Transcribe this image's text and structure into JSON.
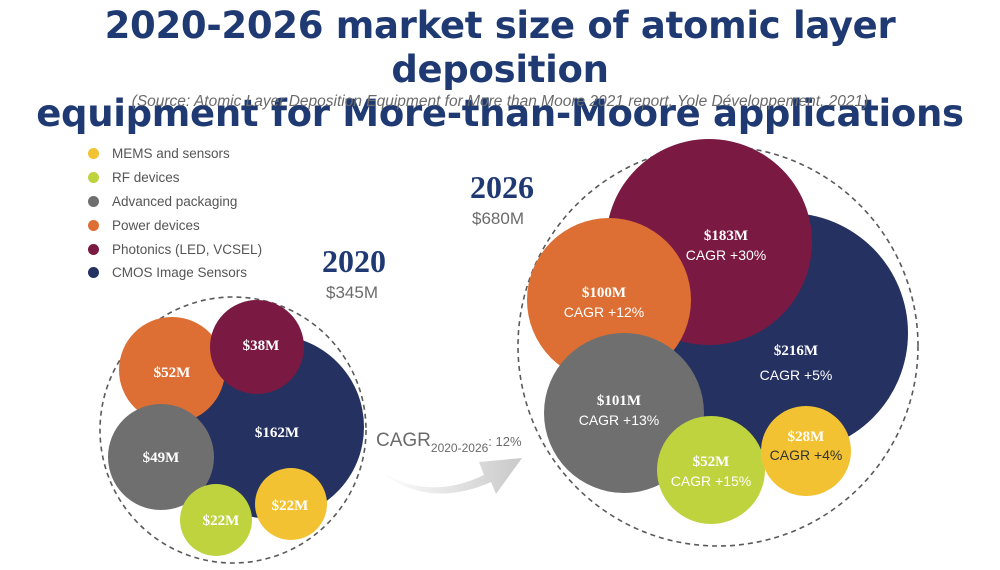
{
  "title": {
    "line1": "2020-2026 market size of atomic layer deposition",
    "line2": "equipment for More-than-Moore applications"
  },
  "source": "(Source: Atomic Layer Deposition Equipment for More than Moore 2021 report, Yole Développement, 2021)",
  "legend": [
    {
      "label": "MEMS and sensors",
      "color": "#f2c232"
    },
    {
      "label": "RF devices",
      "color": "#bfd33f"
    },
    {
      "label": "Advanced packaging",
      "color": "#6f6f6f"
    },
    {
      "label": "Power devices",
      "color": "#dd6f34"
    },
    {
      "label": "Photonics (LED, VCSEL)",
      "color": "#7a1a42"
    },
    {
      "label": "CMOS Image Sensors",
      "color": "#243161"
    }
  ],
  "cagr": {
    "prefix": "CAGR",
    "sub": "2020-2026",
    "suffix": ": 12%"
  },
  "chart_data": {
    "type": "bubble",
    "unit": "$M",
    "groups": [
      {
        "year": "2020",
        "total": "$345M",
        "segments": [
          {
            "category": "CMOS Image Sensors",
            "value": 162,
            "label": "$162M",
            "cagr": ""
          },
          {
            "category": "Power devices",
            "value": 52,
            "label": "$52M",
            "cagr": ""
          },
          {
            "category": "Advanced packaging",
            "value": 49,
            "label": "$49M",
            "cagr": ""
          },
          {
            "category": "Photonics (LED, VCSEL)",
            "value": 38,
            "label": "$38M",
            "cagr": ""
          },
          {
            "category": "RF devices",
            "value": 22,
            "label": "$22M",
            "cagr": ""
          },
          {
            "category": "MEMS and sensors",
            "value": 22,
            "label": "$22M",
            "cagr": ""
          }
        ]
      },
      {
        "year": "2026",
        "total": "$680M",
        "segments": [
          {
            "category": "CMOS Image Sensors",
            "value": 216,
            "label": "$216M",
            "cagr": "CAGR +5%"
          },
          {
            "category": "Photonics (LED, VCSEL)",
            "value": 183,
            "label": "$183M",
            "cagr": "CAGR +30%"
          },
          {
            "category": "Advanced packaging",
            "value": 101,
            "label": "$101M",
            "cagr": "CAGR +13%"
          },
          {
            "category": "Power devices",
            "value": 100,
            "label": "$100M",
            "cagr": "CAGR +12%"
          },
          {
            "category": "RF devices",
            "value": 52,
            "label": "$52M",
            "cagr": "CAGR +15%"
          },
          {
            "category": "MEMS and sensors",
            "value": 28,
            "label": "$28M",
            "cagr": "CAGR +4%"
          }
        ]
      }
    ]
  }
}
